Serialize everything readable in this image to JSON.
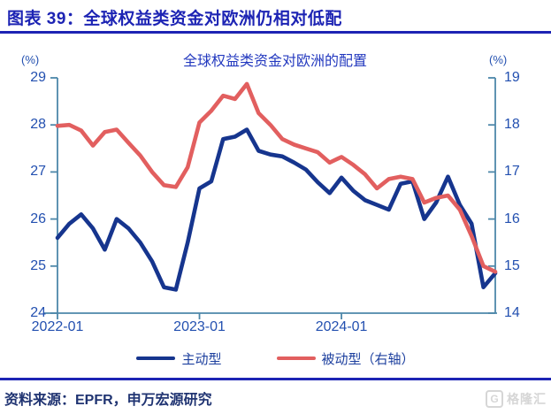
{
  "header": {
    "title": "图表 39：全球权益类资金对欧洲仍相对低配"
  },
  "colors": {
    "accent_blue": "#1d24b4",
    "axis_line": "#4d87a9",
    "tick_label": "#2350b0",
    "active_line": "#16358e",
    "passive_line": "#e25f5f"
  },
  "chart_data": {
    "type": "line",
    "title": "全球权益类资金对欧洲的配置",
    "left_axis": {
      "unit": "(%)",
      "min": 24,
      "max": 29,
      "ticks": [
        24,
        25,
        26,
        27,
        28,
        29
      ]
    },
    "right_axis": {
      "unit": "(%)",
      "min": 14,
      "max": 19,
      "ticks": [
        14,
        15,
        16,
        17,
        18,
        19
      ]
    },
    "x_ticks": [
      "2022-01",
      "2023-01",
      "2024-01"
    ],
    "x_tick_month_index": [
      0,
      12,
      24
    ],
    "grid": false,
    "legend_position": "bottom",
    "months": [
      "2022-01",
      "2022-02",
      "2022-03",
      "2022-04",
      "2022-05",
      "2022-06",
      "2022-07",
      "2022-08",
      "2022-09",
      "2022-10",
      "2022-11",
      "2022-12",
      "2023-01",
      "2023-02",
      "2023-03",
      "2023-04",
      "2023-05",
      "2023-06",
      "2023-07",
      "2023-08",
      "2023-09",
      "2023-10",
      "2023-11",
      "2023-12",
      "2024-01",
      "2024-02",
      "2024-03",
      "2024-04",
      "2024-05",
      "2024-06",
      "2024-07",
      "2024-08",
      "2024-09",
      "2024-10",
      "2024-11",
      "2024-12",
      "2025-01",
      "2025-02"
    ],
    "series": [
      {
        "name": "主动型",
        "axis": "left",
        "color": "#16358e",
        "values": [
          25.6,
          25.9,
          26.1,
          25.8,
          25.35,
          26.0,
          25.8,
          25.5,
          25.1,
          24.55,
          24.5,
          25.5,
          26.65,
          26.8,
          27.7,
          27.75,
          27.9,
          27.45,
          27.37,
          27.33,
          27.2,
          27.05,
          26.78,
          26.55,
          26.88,
          26.6,
          26.4,
          26.3,
          26.2,
          26.75,
          26.8,
          26.0,
          26.35,
          26.9,
          26.3,
          25.9,
          24.55,
          24.85
        ]
      },
      {
        "name": "被动型（右轴）",
        "axis": "right",
        "color": "#e25f5f",
        "values": [
          17.98,
          18.0,
          17.88,
          17.56,
          17.85,
          17.9,
          17.62,
          17.35,
          17.0,
          16.72,
          16.68,
          17.1,
          18.05,
          18.3,
          18.62,
          18.55,
          18.87,
          18.25,
          18.0,
          17.7,
          17.58,
          17.5,
          17.42,
          17.2,
          17.32,
          17.15,
          16.95,
          16.65,
          16.85,
          16.9,
          16.85,
          16.35,
          16.45,
          16.5,
          16.2,
          15.64,
          15.0,
          14.88
        ]
      }
    ]
  },
  "footer": {
    "source": "资料来源：EPFR，申万宏源研究",
    "logo_letter": "G",
    "logo": "格隆汇"
  }
}
